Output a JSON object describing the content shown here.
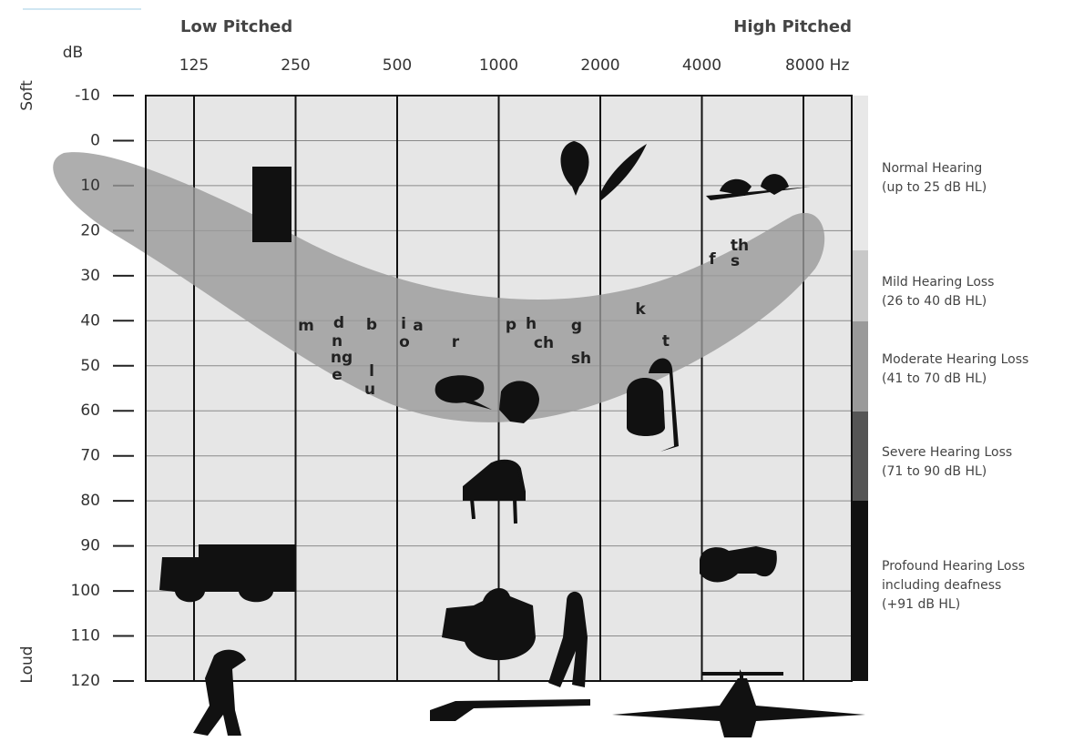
{
  "header": {
    "low_pitched": "Low Pitched",
    "high_pitched": "High Pitched",
    "db_unit": "dB",
    "soft": "Soft",
    "loud": "Loud"
  },
  "frequency_labels": [
    "125",
    "250",
    "500",
    "1000",
    "2000",
    "4000",
    "8000 Hz"
  ],
  "db_ticks": [
    -10,
    0,
    10,
    20,
    30,
    40,
    50,
    60,
    70,
    80,
    90,
    100,
    110,
    120
  ],
  "speech_sounds": [
    "m",
    "d",
    "n",
    "ng",
    "e",
    "b",
    "l",
    "u",
    "i",
    "a",
    "o",
    "r",
    "p",
    "h",
    "ch",
    "g",
    "sh",
    "k",
    "t",
    "f",
    "th",
    "s"
  ],
  "hearing_levels": [
    {
      "lines": [
        "Normal Hearing",
        "(up to 25 dB HL)"
      ]
    },
    {
      "lines": [
        "Mild Hearing Loss",
        "(26 to 40 dB HL)"
      ]
    },
    {
      "lines": [
        "Moderate Hearing Loss",
        "(41 to 70 dB HL)"
      ]
    },
    {
      "lines": [
        "Severe Hearing Loss",
        "(71 to 90 dB HL)"
      ]
    },
    {
      "lines": [
        "Profound Hearing Loss",
        "including deafness",
        "(+91 dB HL)"
      ]
    }
  ]
}
